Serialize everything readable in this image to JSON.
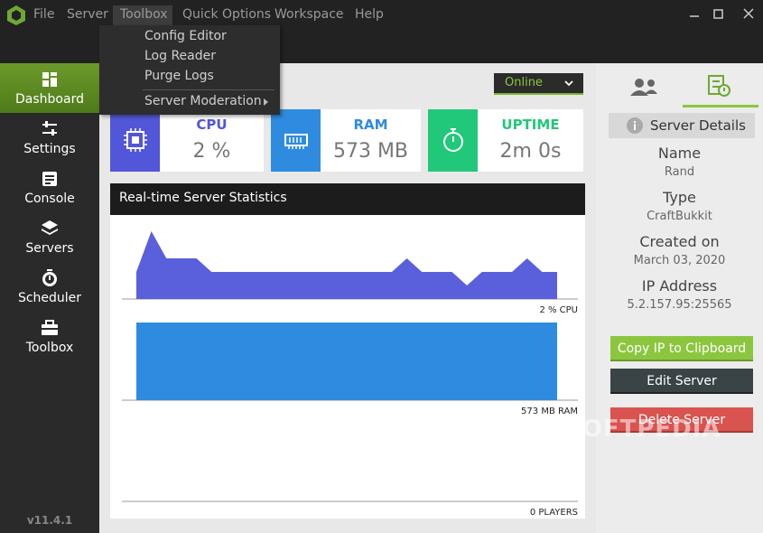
{
  "menu": [
    "File",
    "Server",
    "Toolbox",
    "Quick Options",
    "Workspace",
    "Help"
  ],
  "toolbox_menu": [
    "Config Editor",
    "Log Reader",
    "Purge Logs",
    "Server Moderation"
  ],
  "sidebar": [
    "Dashboard",
    "Settings",
    "Console",
    "Servers",
    "Scheduler",
    "Toolbox"
  ],
  "version": "v11.4.1",
  "status": "Online",
  "cards": [
    {
      "label": "CPU",
      "value": "2 %"
    },
    {
      "label": "RAM",
      "value": "573 MB"
    },
    {
      "label": "UPTIME",
      "value": "2m 0s"
    }
  ],
  "stats": {
    "title": "Real-time Server Statistics",
    "cpu": {
      "label": "2 % CPU",
      "ylim": [
        0,
        6
      ],
      "values": [
        2,
        5,
        3,
        3,
        3,
        2,
        2,
        2,
        2,
        2,
        2,
        2,
        2,
        2,
        2,
        2,
        2,
        2,
        3,
        2,
        2,
        2,
        1,
        2,
        2,
        2,
        3,
        2,
        2
      ]
    },
    "ram": {
      "label": "573 MB RAM",
      "ylim": [
        0,
        600
      ],
      "values": [
        573,
        573,
        573,
        573,
        573,
        573,
        573,
        573,
        573,
        573,
        573,
        573,
        573,
        573,
        573,
        573,
        573,
        573,
        573,
        573,
        573,
        573,
        573,
        573,
        573,
        573,
        573,
        573,
        573
      ]
    },
    "players": {
      "label": "0 PLAYERS"
    }
  },
  "details": {
    "title": "Server Details",
    "fields": [
      {
        "label": "Name",
        "value": "Rand"
      },
      {
        "label": "Type",
        "value": "CraftBukkit"
      },
      {
        "label": "Created on",
        "value": "March 03, 2020"
      },
      {
        "label": "IP Address",
        "value": "5.2.157.95:25565"
      }
    ]
  },
  "buttons": [
    "Copy IP to Clipboard",
    "Edit Server",
    "Delete Server"
  ],
  "watermark": "SOFTPEDIA"
}
